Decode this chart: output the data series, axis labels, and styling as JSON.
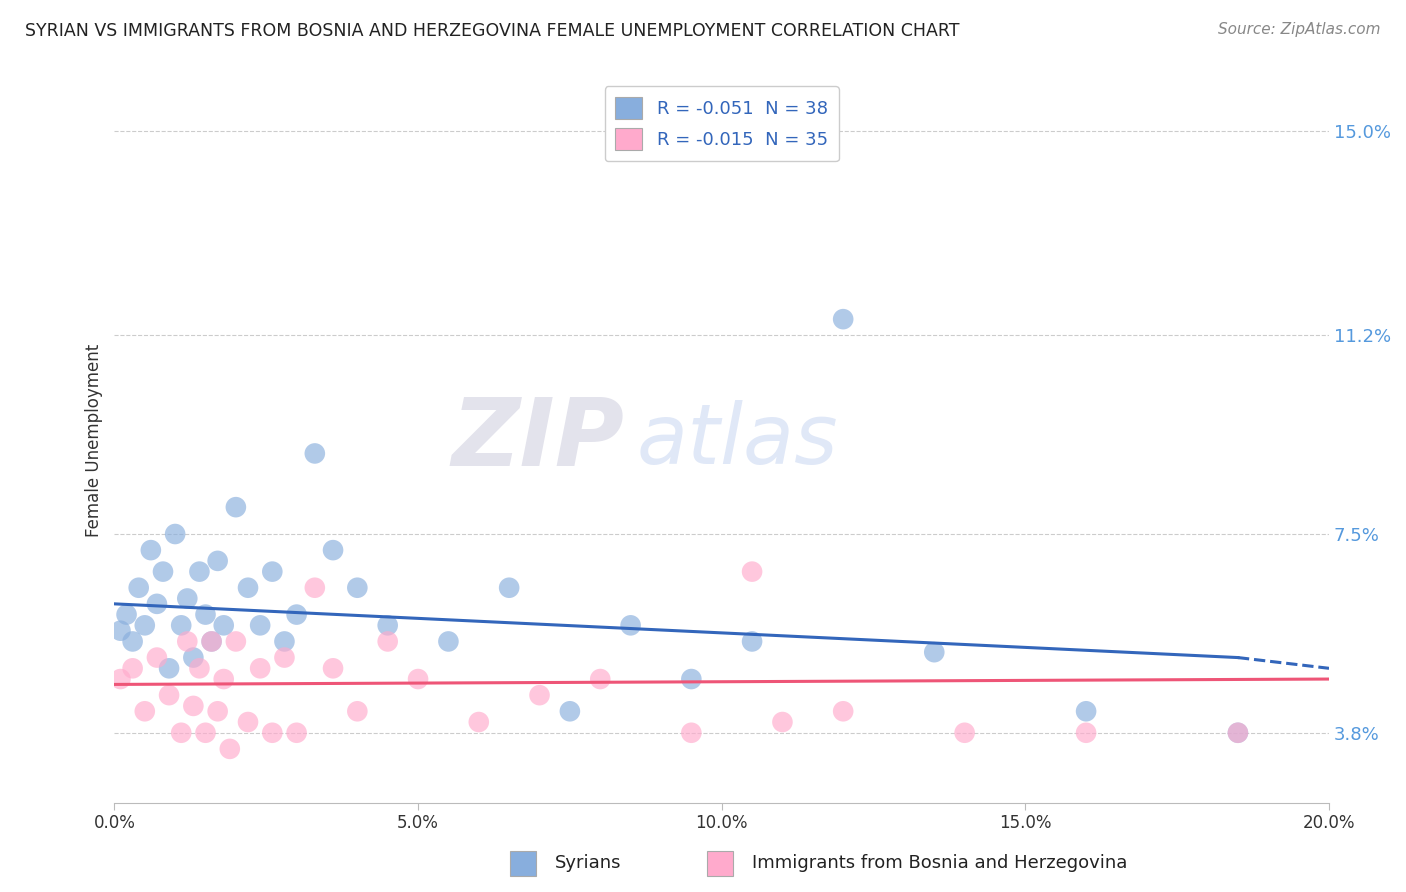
{
  "title": "SYRIAN VS IMMIGRANTS FROM BOSNIA AND HERZEGOVINA FEMALE UNEMPLOYMENT CORRELATION CHART",
  "source": "Source: ZipAtlas.com",
  "ylabel": "Female Unemployment",
  "xlim": [
    0.0,
    0.2
  ],
  "ylim": [
    0.025,
    0.16
  ],
  "yticks": [
    0.038,
    0.075,
    0.112,
    0.15
  ],
  "ytick_labels": [
    "3.8%",
    "7.5%",
    "11.2%",
    "15.0%"
  ],
  "xticks": [
    0.0,
    0.05,
    0.1,
    0.15,
    0.2
  ],
  "xtick_labels": [
    "0.0%",
    "5.0%",
    "10.0%",
    "15.0%",
    "20.0%"
  ],
  "legend1_label": "R = -0.051  N = 38",
  "legend2_label": "R = -0.015  N = 35",
  "bottom_legend1": "Syrians",
  "bottom_legend2": "Immigrants from Bosnia and Herzegovina",
  "blue_color": "#88AEDD",
  "pink_color": "#FFAACC",
  "blue_line_color": "#3366BB",
  "pink_line_color": "#EE5577",
  "watermark_zip": "ZIP",
  "watermark_atlas": "atlas",
  "syrians_x": [
    0.001,
    0.002,
    0.003,
    0.004,
    0.005,
    0.006,
    0.007,
    0.008,
    0.009,
    0.01,
    0.011,
    0.012,
    0.013,
    0.014,
    0.015,
    0.016,
    0.017,
    0.018,
    0.02,
    0.022,
    0.024,
    0.026,
    0.028,
    0.03,
    0.033,
    0.036,
    0.04,
    0.045,
    0.055,
    0.065,
    0.075,
    0.085,
    0.095,
    0.105,
    0.12,
    0.135,
    0.16,
    0.185
  ],
  "syrians_y": [
    0.057,
    0.06,
    0.055,
    0.065,
    0.058,
    0.072,
    0.062,
    0.068,
    0.05,
    0.075,
    0.058,
    0.063,
    0.052,
    0.068,
    0.06,
    0.055,
    0.07,
    0.058,
    0.08,
    0.065,
    0.058,
    0.068,
    0.055,
    0.06,
    0.09,
    0.072,
    0.065,
    0.058,
    0.055,
    0.065,
    0.042,
    0.058,
    0.048,
    0.055,
    0.115,
    0.053,
    0.042,
    0.038
  ],
  "bosnia_x": [
    0.001,
    0.003,
    0.005,
    0.007,
    0.009,
    0.011,
    0.012,
    0.013,
    0.014,
    0.015,
    0.016,
    0.017,
    0.018,
    0.019,
    0.02,
    0.022,
    0.024,
    0.026,
    0.028,
    0.03,
    0.033,
    0.036,
    0.04,
    0.045,
    0.05,
    0.06,
    0.07,
    0.08,
    0.095,
    0.105,
    0.11,
    0.12,
    0.14,
    0.16,
    0.185
  ],
  "bosnia_y": [
    0.048,
    0.05,
    0.042,
    0.052,
    0.045,
    0.038,
    0.055,
    0.043,
    0.05,
    0.038,
    0.055,
    0.042,
    0.048,
    0.035,
    0.055,
    0.04,
    0.05,
    0.038,
    0.052,
    0.038,
    0.065,
    0.05,
    0.042,
    0.055,
    0.048,
    0.04,
    0.045,
    0.048,
    0.038,
    0.068,
    0.04,
    0.042,
    0.038,
    0.038,
    0.038
  ]
}
